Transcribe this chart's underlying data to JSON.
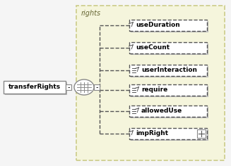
{
  "bg_color": "#fffff0",
  "border_color": "#cccc88",
  "box_bg": "#ffffff",
  "box_border": "#888888",
  "dashed_color": "#555555",
  "text_color": "#000000",
  "title": "rights",
  "main_element": "transferRights",
  "child_elements": [
    "useDuration",
    "useCount",
    "userInteraction",
    "require",
    "allowedUse",
    "impRight"
  ],
  "child_has_expand": [
    false,
    false,
    false,
    false,
    false,
    true
  ],
  "child_has_lines_icon": [
    false,
    false,
    true,
    true,
    true,
    false
  ],
  "fig_width": 3.27,
  "fig_height": 2.36,
  "dpi": 100
}
